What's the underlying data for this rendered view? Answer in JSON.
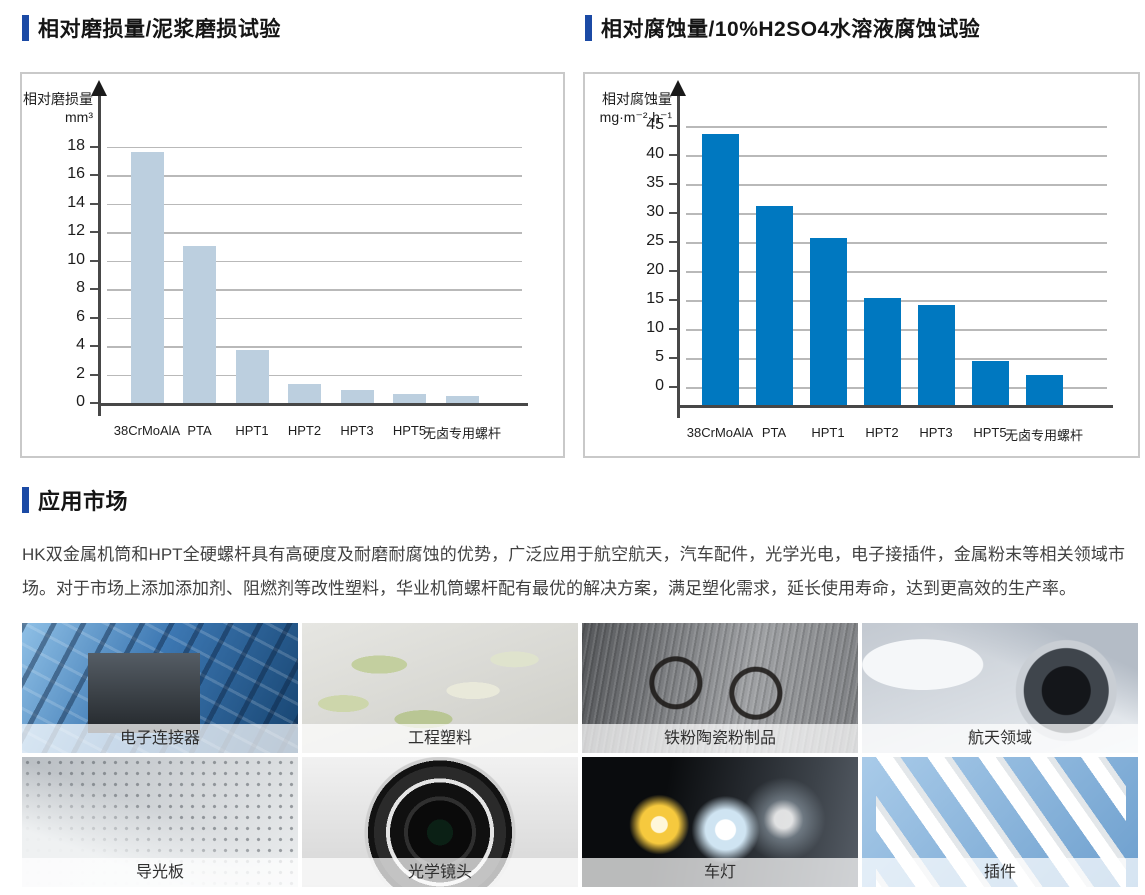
{
  "accent_color": "#1b4aa5",
  "sections": {
    "application_title": "应用市场",
    "application_paragraph": "HK双金属机筒和HPT全硬螺杆具有高硬度及耐磨耐腐蚀的优势，广泛应用于航空航天，汽车配件，光学光电，电子接插件，金属粉末等相关领域市场。对于市场上添加添加剂、阻燃剂等改性塑料，华业机筒螺杆配有最优的解决方案，满足塑化需求，延长使用寿命，达到更高效的生产率。"
  },
  "chart_data": [
    {
      "type": "bar",
      "title": "相对磨损量/泥浆磨损试验",
      "ylabel": "相对磨损量",
      "yunit": "mm³",
      "categories": [
        "38CrMoAlA",
        "PTA",
        "HPT1",
        "HPT2",
        "HPT3",
        "HPT5",
        "无卤专用螺杆"
      ],
      "values": [
        17.6,
        11.0,
        3.75,
        1.3,
        0.9,
        0.65,
        0.5
      ],
      "yticks": [
        0,
        2,
        4,
        6,
        8,
        10,
        12,
        14,
        16,
        18
      ],
      "ylim": [
        0,
        22.4
      ],
      "bar_color": "#bccfdf",
      "grid": true,
      "legend": "none"
    },
    {
      "type": "bar",
      "title": "相对腐蚀量/10%H2SO4水溶液腐蚀试验",
      "ylabel": "相对腐蚀量",
      "yunit": "mg·m⁻²·h⁻¹",
      "categories": [
        "38CrMoAlA",
        "PTA",
        "HPT1",
        "HPT2",
        "HPT3",
        "HPT5",
        "无卤专用螺杆"
      ],
      "values": [
        43.7,
        31.2,
        25.7,
        15.3,
        14.2,
        4.5,
        2.1
      ],
      "yticks": [
        0,
        5,
        10,
        15,
        20,
        25,
        30,
        35,
        40,
        45
      ],
      "ylim": [
        -3.1,
        52.3
      ],
      "bar_color": "#0078c0",
      "grid": true,
      "legend": "none"
    }
  ],
  "gallery": {
    "items": [
      {
        "label": "电子连接器"
      },
      {
        "label": "工程塑料"
      },
      {
        "label": "铁粉陶瓷粉制品"
      },
      {
        "label": "航天领域"
      },
      {
        "label": "导光板"
      },
      {
        "label": "光学镜头"
      },
      {
        "label": "车灯"
      },
      {
        "label": "插件"
      }
    ]
  }
}
